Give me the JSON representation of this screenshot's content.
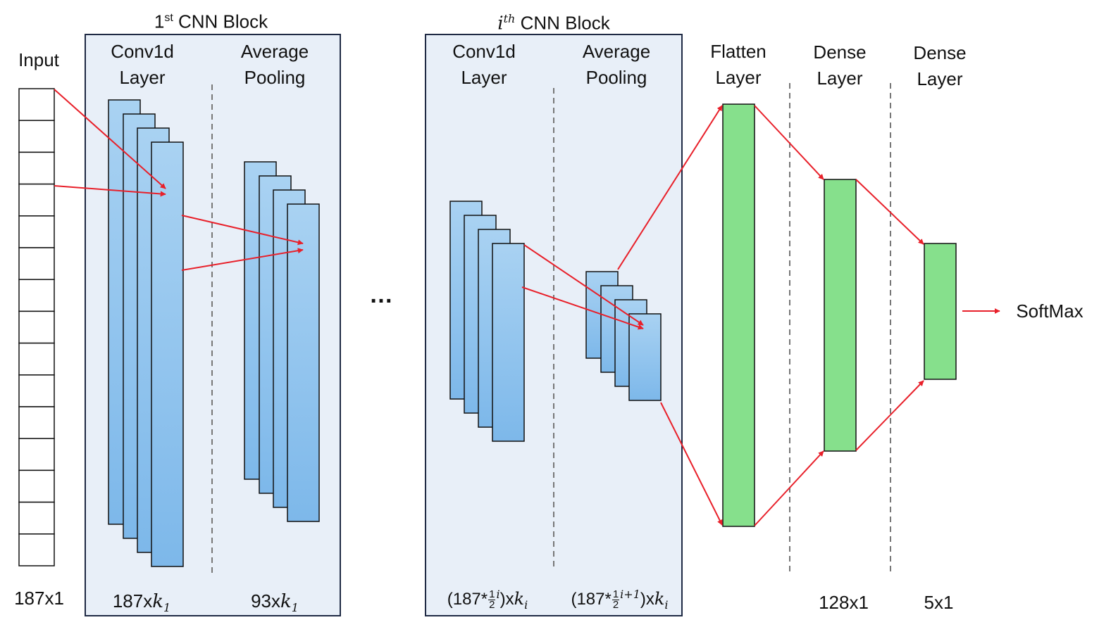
{
  "input": {
    "label": "Input",
    "size": "187x1",
    "cells": 15
  },
  "block1": {
    "title_prefix": "1",
    "title_sup": "st",
    "title_suffix": " CNN Block",
    "conv_label_1": "Conv1d",
    "conv_label_2": "Layer",
    "pool_label_1": "Average",
    "pool_label_2": "Pooling",
    "conv_dim_num": "187x",
    "conv_dim_var": "k",
    "conv_dim_sub": "1",
    "pool_dim_num": "93x",
    "pool_dim_var": "k",
    "pool_dim_sub": "1"
  },
  "ellipsis": "…",
  "blocki": {
    "title_var": "i",
    "title_sup": "th",
    "title_suffix": " CNN Block",
    "conv_label_1": "Conv1d",
    "conv_label_2": "Layer",
    "pool_label_1": "Average",
    "pool_label_2": "Pooling",
    "conv_dim_open": "(187*",
    "conv_dim_frac_num": "1",
    "conv_dim_frac_den": "2",
    "conv_dim_exp": "i",
    "conv_dim_close": ")x",
    "conv_dim_var": "k",
    "conv_dim_sub": "i",
    "pool_dim_open": "(187*",
    "pool_dim_frac_num": "1",
    "pool_dim_frac_den": "2",
    "pool_dim_exp": "i+1",
    "pool_dim_close": ")x",
    "pool_dim_var": "k",
    "pool_dim_sub": "i"
  },
  "flatten": {
    "label_1": "Flatten",
    "label_2": "Layer"
  },
  "dense1": {
    "label_1": "Dense",
    "label_2": "Layer",
    "size": "128x1"
  },
  "dense2": {
    "label_1": "Dense",
    "label_2": "Layer",
    "size": "5x1"
  },
  "output": {
    "label": "SoftMax"
  },
  "colors": {
    "block_fill": "#e8eff8",
    "block_stroke": "#1f2a44",
    "conv_gradient_top": "#a9d2f2",
    "conv_gradient_bottom": "#7db8ea",
    "dense_fill": "#86e08c",
    "arrow": "#e8202a",
    "divider": "#777777"
  }
}
